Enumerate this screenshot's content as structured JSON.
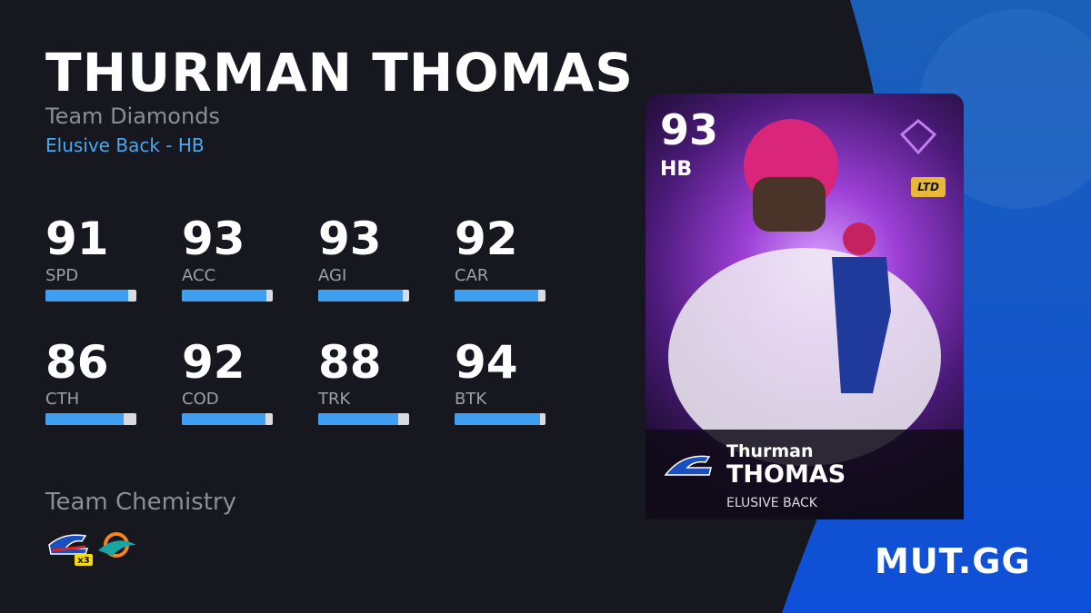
{
  "header": {
    "name": "THURMAN THOMAS",
    "program": "Team Diamonds",
    "archetype": "Elusive Back - HB"
  },
  "stats": [
    {
      "value": 91,
      "label": "SPD"
    },
    {
      "value": 93,
      "label": "ACC"
    },
    {
      "value": 93,
      "label": "AGI"
    },
    {
      "value": 92,
      "label": "CAR"
    },
    {
      "value": 86,
      "label": "CTH"
    },
    {
      "value": 92,
      "label": "COD"
    },
    {
      "value": 88,
      "label": "TRK"
    },
    {
      "value": 94,
      "label": "BTK"
    }
  ],
  "chemistry": {
    "title": "Team Chemistry",
    "count": "x3"
  },
  "card": {
    "ovr": "93",
    "position": "HB",
    "badge": "LTD",
    "first_name": "Thurman",
    "last_name": "THOMAS",
    "archetype": "ELUSIVE BACK"
  },
  "brand": "MUT.GG"
}
